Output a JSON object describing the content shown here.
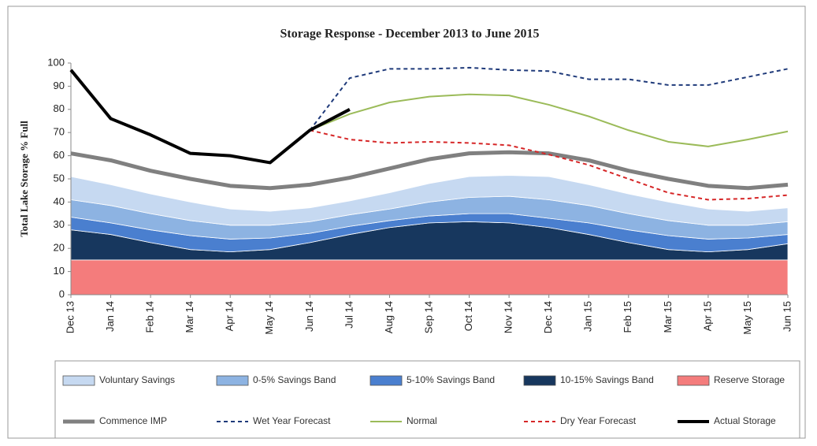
{
  "chart_data": {
    "type": "area",
    "title": "Storage Response - December 2013 to June 2015",
    "y_label": "Total Lake Storage % Full",
    "categories": [
      "Dec 13",
      "Jan 14",
      "Feb 14",
      "Mar 14",
      "Apr 14",
      "May 14",
      "Jun 14",
      "Jul 14",
      "Aug 14",
      "Sep 14",
      "Oct 14",
      "Nov 14",
      "Dec 14",
      "Jan 15",
      "Feb 15",
      "Mar 15",
      "Apr 15",
      "May 15",
      "Jun 15"
    ],
    "ylim": [
      0,
      100
    ],
    "yticks": [
      0,
      10,
      20,
      30,
      40,
      50,
      60,
      70,
      80,
      90,
      100
    ],
    "series": [
      {
        "name": "Voluntary Savings",
        "type": "area",
        "color": "#c6d9f1",
        "values": [
          10,
          9,
          8.5,
          8,
          7,
          6,
          6,
          6,
          7,
          8,
          9,
          9,
          10,
          9,
          8.5,
          8,
          7,
          6,
          6
        ]
      },
      {
        "name": "0-5% Savings Band",
        "type": "area",
        "color": "#8db3e2",
        "values": [
          7.5,
          7.5,
          7,
          6.5,
          6,
          5.5,
          5,
          5,
          5,
          6,
          7,
          7.5,
          8,
          7.5,
          7,
          6.5,
          6,
          5.5,
          5.5
        ]
      },
      {
        "name": "5-10% Savings Band",
        "type": "area",
        "color": "#4a7fcf",
        "values": [
          5.5,
          5,
          5.5,
          6,
          5.5,
          5,
          4,
          3.5,
          3,
          3,
          3.5,
          4,
          4,
          5,
          5.5,
          6,
          5.5,
          5,
          4
        ]
      },
      {
        "name": "10-15% Savings Band",
        "type": "area",
        "color": "#17375e",
        "values": [
          13,
          11,
          7.5,
          4.5,
          3.5,
          4.5,
          7.5,
          11,
          14,
          16,
          16.5,
          16,
          14,
          11,
          7.5,
          4.5,
          3.5,
          4.5,
          7
        ]
      },
      {
        "name": "Reserve Storage",
        "type": "area",
        "color": "#f47c7c",
        "values": [
          15,
          15,
          15,
          15,
          15,
          15,
          15,
          15,
          15,
          15,
          15,
          15,
          15,
          15,
          15,
          15,
          15,
          15,
          15
        ]
      },
      {
        "name": "Commence IMP",
        "type": "line",
        "color": "#808080",
        "width": 5,
        "dashed": false,
        "values": [
          61,
          58,
          53.5,
          50,
          47,
          46,
          47.5,
          50.5,
          54.5,
          58.5,
          61,
          61.5,
          61,
          58,
          53.5,
          50,
          47,
          46,
          47.5
        ]
      },
      {
        "name": "Wet Year Forecast",
        "type": "line",
        "color": "#1f3a7a",
        "width": 2,
        "dashed": true,
        "values": [
          null,
          null,
          null,
          null,
          null,
          null,
          71,
          93.5,
          97.5,
          97.5,
          98,
          97,
          96.5,
          93,
          93,
          90.5,
          90.5,
          94,
          97.5
        ]
      },
      {
        "name": "Normal",
        "type": "line",
        "color": "#9bbb59",
        "width": 2,
        "dashed": false,
        "values": [
          null,
          null,
          null,
          null,
          null,
          null,
          71,
          78,
          83,
          85.5,
          86.5,
          86,
          82,
          77,
          71,
          66,
          64,
          67,
          70.5
        ]
      },
      {
        "name": "Dry Year Forecast",
        "type": "line",
        "color": "#d62728",
        "width": 2,
        "dashed": true,
        "values": [
          null,
          null,
          null,
          null,
          null,
          null,
          71,
          67,
          65.5,
          66,
          65.5,
          64.5,
          60.5,
          56,
          50,
          44,
          41,
          41.5,
          43
        ]
      },
      {
        "name": "Actual Storage",
        "type": "line",
        "color": "#000000",
        "width": 4,
        "dashed": false,
        "values": [
          97,
          76,
          69,
          61,
          60,
          57,
          71,
          80,
          null,
          null,
          null,
          null,
          null,
          null,
          null,
          null,
          null,
          null,
          null
        ]
      }
    ]
  }
}
